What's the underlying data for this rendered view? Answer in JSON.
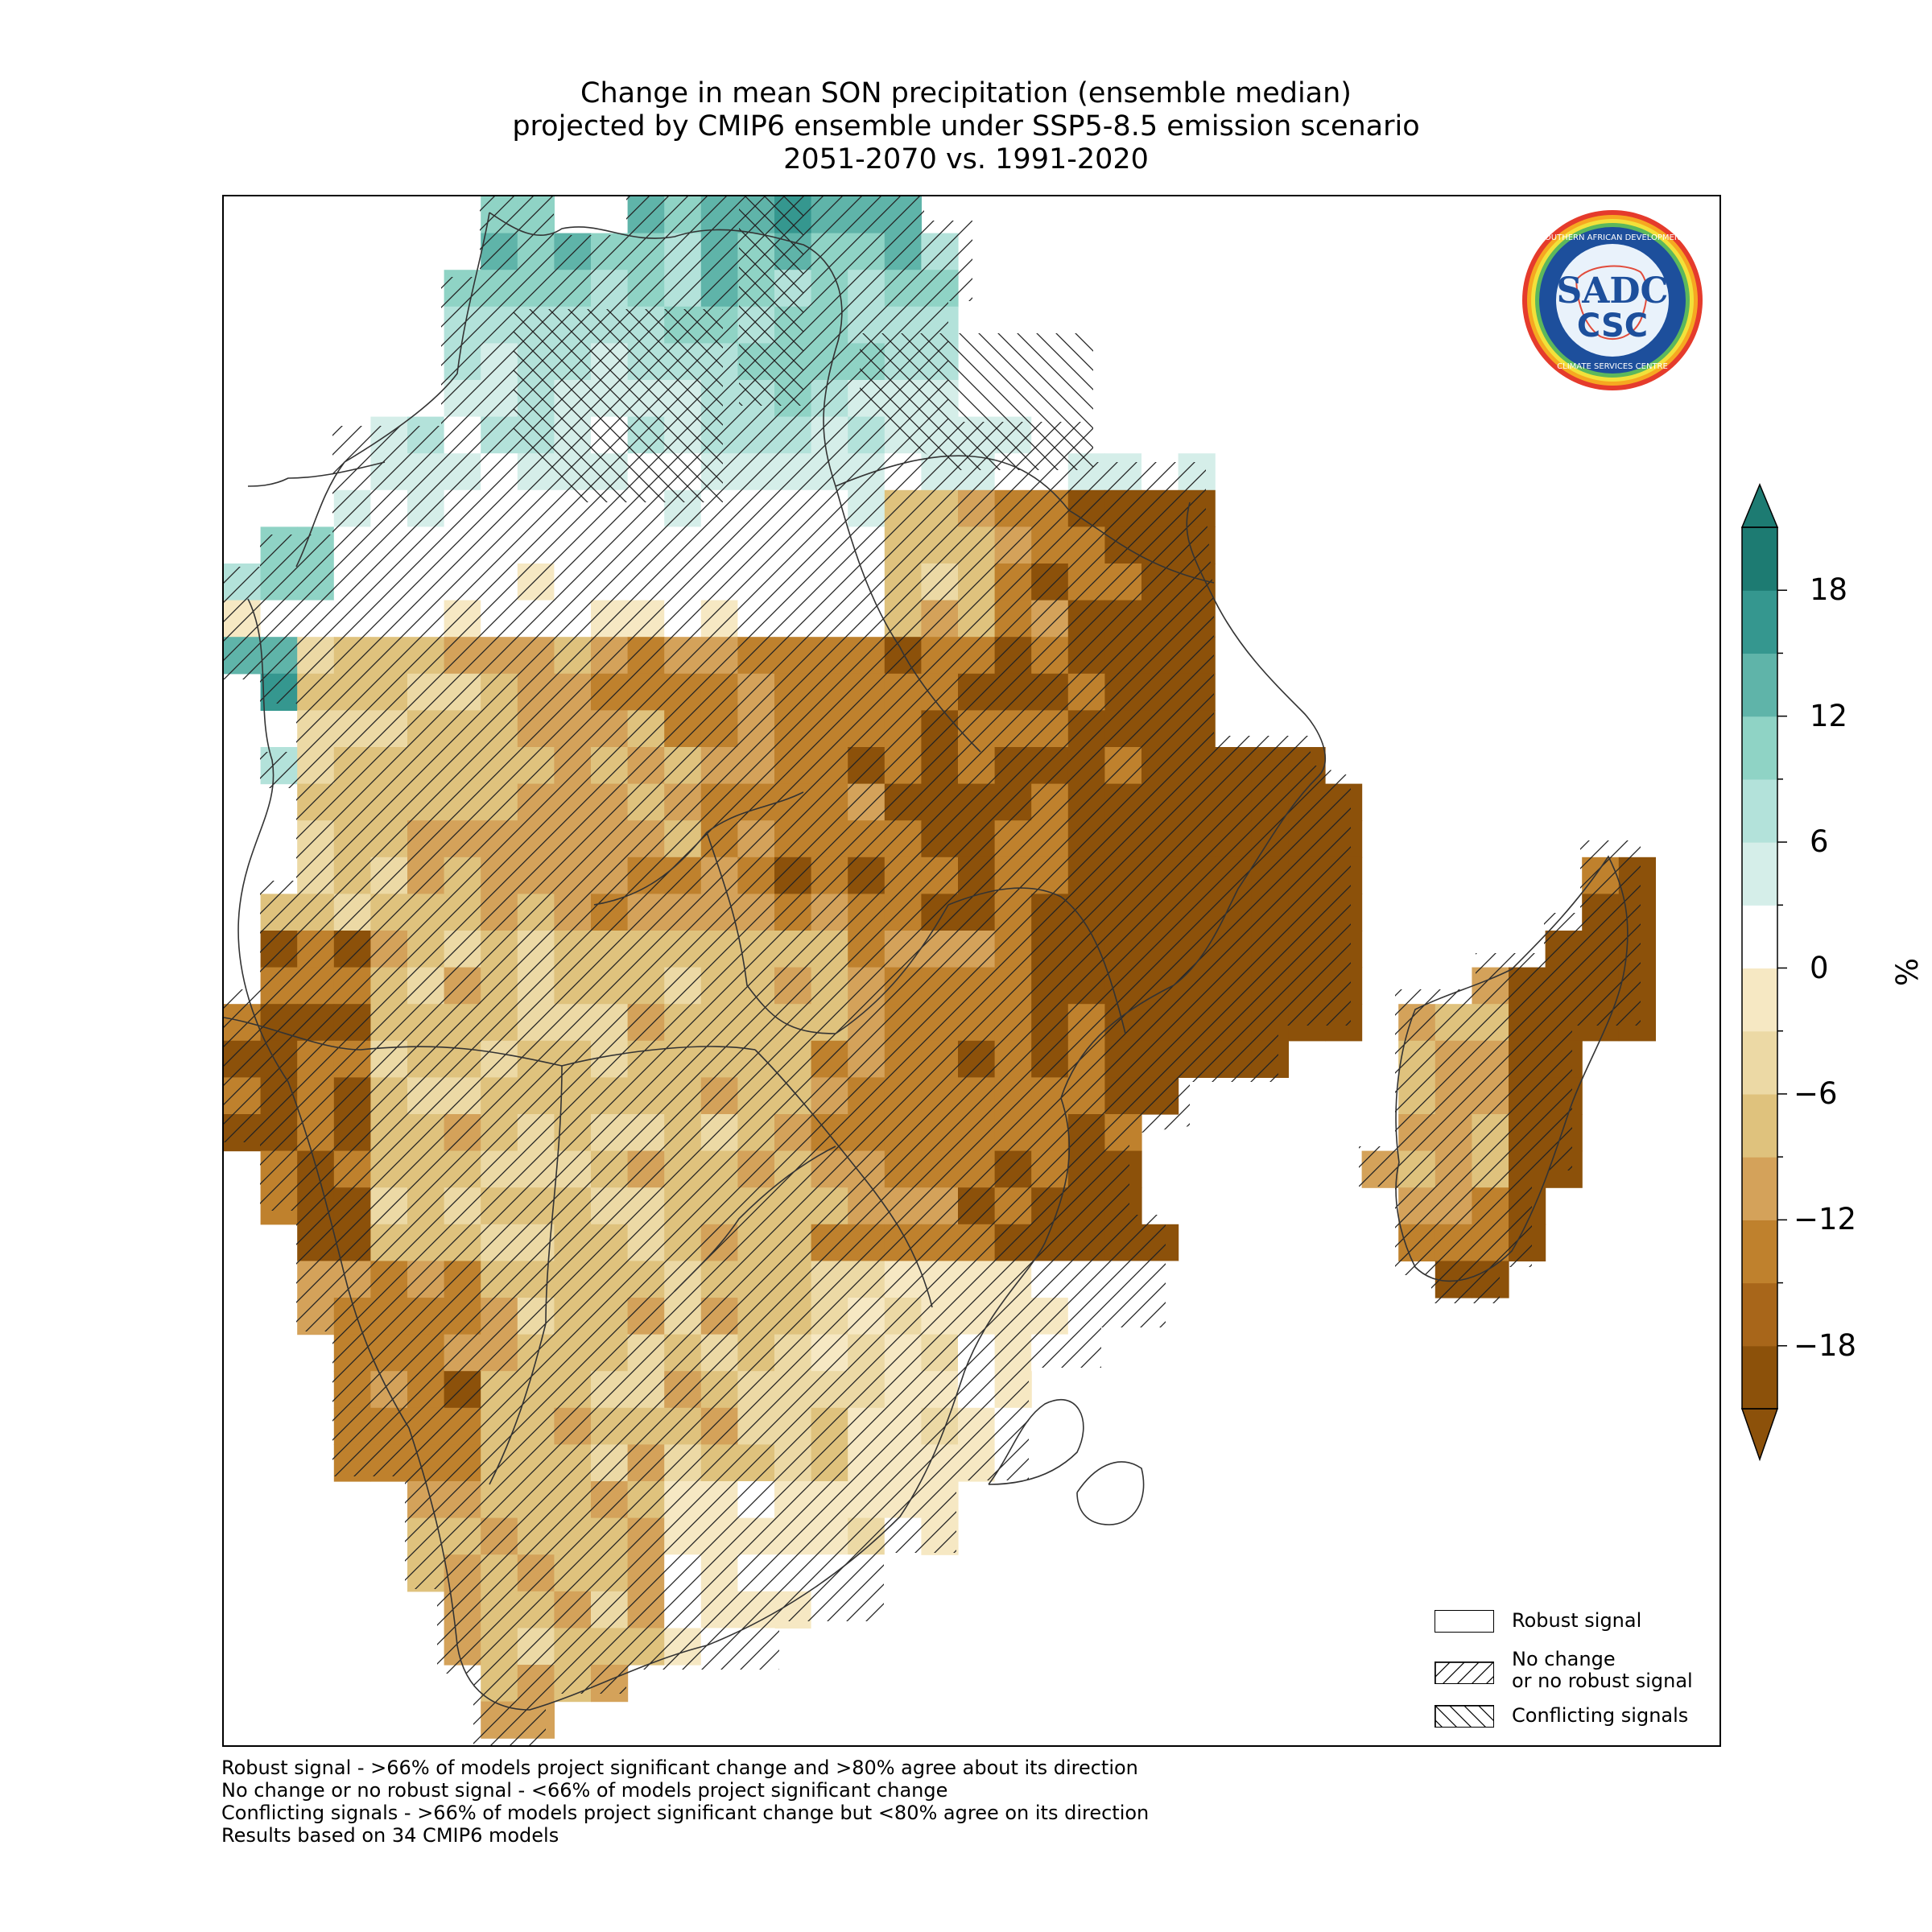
{
  "title": {
    "line1": "Change in mean SON precipitation (ensemble median)",
    "line2": "projected by CMIP6 ensemble under SSP5-8.5 emission scenario",
    "line3": "2051-2070 vs. 1991-2020"
  },
  "colorbar": {
    "unit": "%",
    "ticks": [
      "18",
      "12",
      "6",
      "0",
      "−6",
      "−12",
      "−18"
    ],
    "tick_values": [
      18,
      12,
      6,
      0,
      -6,
      -12,
      -18
    ],
    "range": [
      -21,
      21
    ],
    "extend": "both",
    "colors": [
      "#8c510a",
      "#a8661a",
      "#bf812d",
      "#d4a25a",
      "#dfc27d",
      "#ecd9a5",
      "#f6e8c3",
      "#ffffff",
      "#d5eee9",
      "#b3e2da",
      "#8fd3c5",
      "#5fb4a9",
      "#35978f",
      "#1d7b72"
    ]
  },
  "legend": {
    "robust": "Robust signal",
    "no_change_line1": "No change",
    "no_change_line2": "or no robust signal",
    "conflicting": "Conflicting signals"
  },
  "footnotes": {
    "line1": "Robust signal - >66% of models project significant change and >80% agree about its direction",
    "line2": "No change or no robust signal - <66% of models project significant change",
    "line3": "Conflicting signals - >66% of models project significant change but <80% agree on its direction",
    "line4": "Results based on 34 CMIP6 models"
  },
  "logo": {
    "text": "SADC CSC",
    "ring_text": "SOUTHERN AFRICAN DEVELOPMENT COMMUNITY • CLIMATE SERVICES CENTRE"
  }
}
